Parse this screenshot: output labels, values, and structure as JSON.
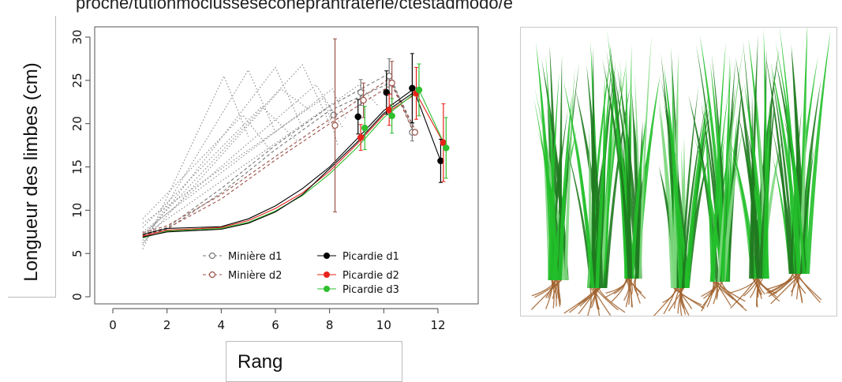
{
  "caption": "proche/tutionmoclusseseconeprantraterie/ctestadmodo/e",
  "chart_data": {
    "type": "line",
    "xlabel": "Rang",
    "ylabel": "Longueur des limbes (cm)",
    "xlim": [
      0,
      13
    ],
    "ylim": [
      0,
      30
    ],
    "xticks": [
      0,
      2,
      4,
      6,
      8,
      10,
      12
    ],
    "yticks": [
      0,
      5,
      10,
      15,
      20,
      25,
      30
    ],
    "grid": false,
    "legend_position": "bottom-right",
    "legend": [
      {
        "name": "Minière d1",
        "color": "#777777",
        "marker": "open-circle",
        "style": "dashed"
      },
      {
        "name": "Minière d2",
        "color": "#9b5148",
        "marker": "open-circle",
        "style": "dashed"
      },
      {
        "name": "Picardie d1",
        "color": "#000000",
        "marker": "filled-circle",
        "style": "solid"
      },
      {
        "name": "Picardie d2",
        "color": "#e8231b",
        "marker": "filled-circle",
        "style": "solid"
      },
      {
        "name": "Picardie d3",
        "color": "#2fbf2f",
        "marker": "filled-circle",
        "style": "solid"
      }
    ],
    "simulated_dotted_curves": [
      {
        "x": [
          1.1,
          4.1,
          5.0
        ],
        "y": [
          5.5,
          25.5,
          18.5
        ]
      },
      {
        "x": [
          1.1,
          5.0,
          6.0
        ],
        "y": [
          6.0,
          26.2,
          19.0
        ]
      },
      {
        "x": [
          1.1,
          6.0,
          7.0
        ],
        "y": [
          6.5,
          26.5,
          19.5
        ]
      },
      {
        "x": [
          1.1,
          7.0,
          8.0
        ],
        "y": [
          7.0,
          26.8,
          20.0
        ]
      },
      {
        "x": [
          1.1,
          6.2,
          7.3
        ],
        "y": [
          6.2,
          24.0,
          21.5
        ]
      },
      {
        "x": [
          1.1,
          7.5,
          8.5
        ],
        "y": [
          7.2,
          24.5,
          19.5
        ]
      },
      {
        "x": [
          1.1,
          8.1,
          8.6
        ],
        "y": [
          7.5,
          24.0,
          20.5
        ]
      },
      {
        "x": [
          1.1,
          5.5,
          6.8
        ],
        "y": [
          8.0,
          22.0,
          18.0
        ]
      },
      {
        "x": [
          1.1,
          7.8,
          8.3
        ],
        "y": [
          8.5,
          23.0,
          17.5
        ]
      },
      {
        "x": [
          1.1,
          4.8,
          5.8
        ],
        "y": [
          9.0,
          21.0,
          17.0
        ]
      },
      {
        "x": [
          1.1,
          9.1,
          9.8
        ],
        "y": [
          7.0,
          24.5,
          22.0
        ]
      }
    ],
    "simulated_dashed_curves": [
      {
        "color": "#777777",
        "x": [
          1.1,
          2,
          4,
          6,
          8,
          10.2,
          11.1
        ],
        "y": [
          7.2,
          8.0,
          12.5,
          17.5,
          22.0,
          25.8,
          19.0
        ]
      },
      {
        "color": "#777777",
        "x": [
          1.1,
          2,
          4,
          6,
          8,
          10.3,
          11.2
        ],
        "y": [
          7.0,
          7.8,
          12.0,
          17.0,
          21.5,
          24.8,
          19.0
        ]
      },
      {
        "color": "#9b5148",
        "x": [
          1.1,
          2,
          4,
          6,
          8,
          10.2,
          11.1
        ],
        "y": [
          7.4,
          8.2,
          11.8,
          16.2,
          20.5,
          25.2,
          19.0
        ]
      },
      {
        "color": "#9b5148",
        "x": [
          1.1,
          2,
          4,
          6,
          8,
          10.3,
          11.2
        ],
        "y": [
          7.1,
          7.9,
          11.3,
          15.8,
          20.0,
          24.5,
          19.0
        ]
      }
    ],
    "simulated_solid_curves": [
      {
        "color": "#000000",
        "x": [
          1.1,
          2,
          4,
          5,
          6,
          7,
          8,
          9,
          10,
          11.1,
          12.1
        ],
        "y": [
          7.2,
          7.9,
          8.1,
          9.0,
          10.5,
          12.5,
          15.0,
          18.2,
          21.5,
          24.0,
          15.7
        ]
      },
      {
        "color": "#e8231b",
        "x": [
          1.1,
          2,
          4,
          5,
          6,
          7,
          8,
          9,
          10,
          11.2,
          12.2
        ],
        "y": [
          7.0,
          7.7,
          8.0,
          8.8,
          10.2,
          12.0,
          14.5,
          17.6,
          21.0,
          23.5,
          17.8
        ]
      },
      {
        "color": "#2fbf2f",
        "x": [
          1.1,
          2,
          4,
          5,
          6,
          7,
          8,
          9,
          10,
          11.3,
          12.3
        ],
        "y": [
          6.8,
          7.6,
          7.9,
          8.6,
          9.9,
          11.7,
          14.2,
          17.2,
          20.7,
          23.9,
          17.2
        ]
      },
      {
        "color": "#000000",
        "x": [
          1.1,
          2,
          4,
          5,
          6,
          7,
          8,
          9,
          10,
          11.1
        ],
        "y": [
          6.9,
          7.5,
          7.8,
          8.5,
          9.8,
          11.8,
          14.8,
          17.8,
          21.2,
          23.6
        ]
      }
    ],
    "observed_points": [
      {
        "series": "Minière d1",
        "points": [
          {
            "x": 8.15,
            "y": 21.0,
            "err": 0
          },
          {
            "x": 9.15,
            "y": 23.6,
            "err": 1.5
          },
          {
            "x": 10.2,
            "y": 25.5,
            "err": 2.0
          },
          {
            "x": 11.05,
            "y": 19.0,
            "err": 1.0
          }
        ]
      },
      {
        "series": "Minière d2",
        "points": [
          {
            "x": 8.2,
            "y": 19.8,
            "err": 10.0
          },
          {
            "x": 9.25,
            "y": 22.7,
            "err": 2.0
          },
          {
            "x": 10.3,
            "y": 24.7,
            "err": 2.5
          },
          {
            "x": 11.15,
            "y": 19.0,
            "err": 0
          }
        ]
      },
      {
        "series": "Picardie d1",
        "points": [
          {
            "x": 9.05,
            "y": 20.8,
            "err": 2.0
          },
          {
            "x": 10.1,
            "y": 23.6,
            "err": 2.5
          },
          {
            "x": 11.05,
            "y": 24.1,
            "err": 4.0
          },
          {
            "x": 12.1,
            "y": 15.7,
            "err": 2.5
          }
        ]
      },
      {
        "series": "Picardie d2",
        "points": [
          {
            "x": 9.15,
            "y": 18.4,
            "err": 1.5
          },
          {
            "x": 10.2,
            "y": 21.6,
            "err": 1.8
          },
          {
            "x": 11.2,
            "y": 23.5,
            "err": 3.0
          },
          {
            "x": 12.2,
            "y": 17.8,
            "err": 4.5
          }
        ]
      },
      {
        "series": "Picardie d3",
        "points": [
          {
            "x": 9.3,
            "y": 19.5,
            "err": 2.5
          },
          {
            "x": 10.3,
            "y": 20.9,
            "err": 2.0
          },
          {
            "x": 11.3,
            "y": 23.9,
            "err": 3.0
          },
          {
            "x": 12.3,
            "y": 17.2,
            "err": 3.5
          }
        ]
      }
    ]
  },
  "image_panel": {
    "description_colors": {
      "leaf_dark": "#1f7a1f",
      "leaf_bright": "#22c02a",
      "leaf_light": "#7fd87f",
      "stem_brown": "#a0622d"
    }
  }
}
